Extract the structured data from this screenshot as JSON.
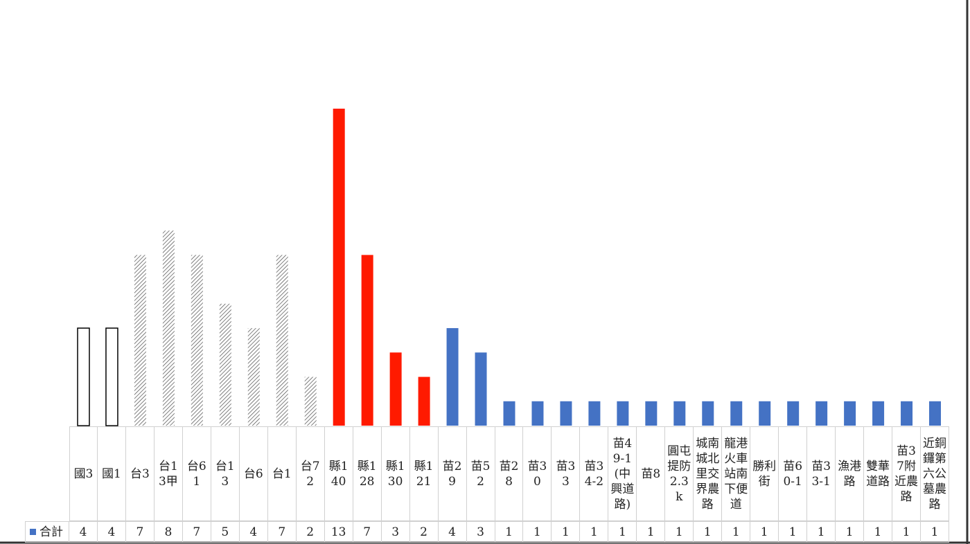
{
  "chart_data": {
    "type": "bar",
    "legend_label": "合計",
    "legend_color": "#4472c4",
    "categories": [
      "國3",
      "國1",
      "台3",
      "台13甲",
      "台61",
      "台13",
      "台6",
      "台1",
      "台72",
      "縣140",
      "縣128",
      "縣130",
      "縣121",
      "苗29",
      "苗52",
      "苗28",
      "苗30",
      "苗33",
      "苗34-2",
      "苗49-1(中興道路)",
      "苗8",
      "圓屯提防2.3k",
      "城南城北里交界農路",
      "龍港火車站南下便道",
      "勝利街",
      "苗60-1",
      "苗33-1",
      "漁港路",
      "雙華道路",
      "苗37附近農路",
      "近銅鑼第六公墓農路"
    ],
    "values": [
      4,
      4,
      7,
      8,
      7,
      5,
      4,
      7,
      2,
      13,
      7,
      3,
      2,
      4,
      3,
      1,
      1,
      1,
      1,
      1,
      1,
      1,
      1,
      1,
      1,
      1,
      1,
      1,
      1,
      1,
      1
    ],
    "bar_fills": [
      "none",
      "none",
      "hatched",
      "hatched",
      "hatched",
      "hatched",
      "hatched",
      "hatched",
      "hatched",
      "#ff1a00",
      "#ff1a00",
      "#ff1a00",
      "#ff1a00",
      "#4472c4",
      "#4472c4",
      "#4472c4",
      "#4472c4",
      "#4472c4",
      "#4472c4",
      "#4472c4",
      "#4472c4",
      "#4472c4",
      "#4472c4",
      "#4472c4",
      "#4472c4",
      "#4472c4",
      "#4472c4",
      "#4472c4",
      "#4472c4",
      "#4472c4",
      "#4472c4"
    ],
    "ylim": [
      0,
      13
    ]
  }
}
